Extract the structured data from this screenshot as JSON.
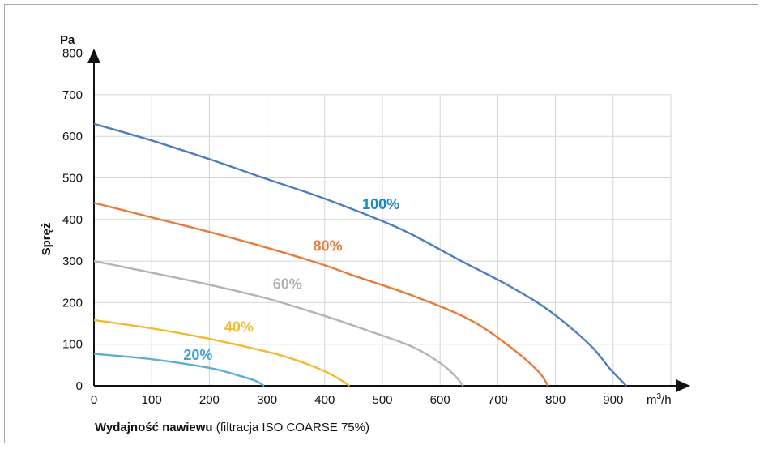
{
  "chart_data": {
    "type": "line",
    "ylabel": "Spręż",
    "y_unit": "Pa",
    "x_unit_base": "m",
    "x_unit_exp": "3",
    "x_unit_tail": "/h",
    "xlabel_bold": "Wydajność nawiewu",
    "xlabel_rest": " (filtracja ISO COARSE 75%)",
    "xlim": [
      0,
      1000
    ],
    "ylim": [
      0,
      800
    ],
    "x_ticks": [
      "0",
      "100",
      "200",
      "300",
      "400",
      "500",
      "600",
      "700",
      "800",
      "900"
    ],
    "y_ticks": [
      "0",
      "100",
      "200",
      "300",
      "400",
      "500",
      "600",
      "700",
      "800"
    ],
    "grid": true,
    "series": [
      {
        "name": "100%",
        "color": "#4b7fc0",
        "label_color": "#1a86c6",
        "label_at": [
          465,
          425
        ],
        "points": [
          [
            0,
            630
          ],
          [
            100,
            590
          ],
          [
            200,
            545
          ],
          [
            300,
            497
          ],
          [
            400,
            450
          ],
          [
            530,
            378
          ],
          [
            630,
            305
          ],
          [
            720,
            240
          ],
          [
            790,
            180
          ],
          [
            860,
            98
          ],
          [
            895,
            40
          ],
          [
            923,
            0
          ]
        ]
      },
      {
        "name": "80%",
        "color": "#e97b3a",
        "label_color": "#e97b3a",
        "label_at": [
          380,
          325
        ],
        "points": [
          [
            0,
            440
          ],
          [
            100,
            405
          ],
          [
            200,
            370
          ],
          [
            300,
            332
          ],
          [
            400,
            290
          ],
          [
            450,
            265
          ],
          [
            550,
            218
          ],
          [
            650,
            160
          ],
          [
            720,
            95
          ],
          [
            770,
            35
          ],
          [
            787,
            0
          ]
        ]
      },
      {
        "name": "60%",
        "color": "#b3b3b3",
        "label_color": "#b3b3b3",
        "label_at": [
          310,
          233
        ],
        "points": [
          [
            0,
            300
          ],
          [
            100,
            272
          ],
          [
            200,
            243
          ],
          [
            300,
            210
          ],
          [
            400,
            168
          ],
          [
            470,
            135
          ],
          [
            550,
            95
          ],
          [
            600,
            55
          ],
          [
            625,
            25
          ],
          [
            640,
            0
          ]
        ]
      },
      {
        "name": "40%",
        "color": "#f4ba2f",
        "label_color": "#f4ba2f",
        "label_at": [
          226,
          130
        ],
        "points": [
          [
            0,
            158
          ],
          [
            100,
            138
          ],
          [
            200,
            113
          ],
          [
            300,
            82
          ],
          [
            350,
            62
          ],
          [
            400,
            35
          ],
          [
            430,
            12
          ],
          [
            443,
            0
          ]
        ]
      },
      {
        "name": "20%",
        "color": "#5dadd6",
        "label_color": "#3fa2d8",
        "label_at": [
          155,
          62
        ],
        "points": [
          [
            0,
            77
          ],
          [
            100,
            64
          ],
          [
            200,
            43
          ],
          [
            250,
            25
          ],
          [
            280,
            12
          ],
          [
            295,
            0
          ]
        ]
      }
    ]
  }
}
